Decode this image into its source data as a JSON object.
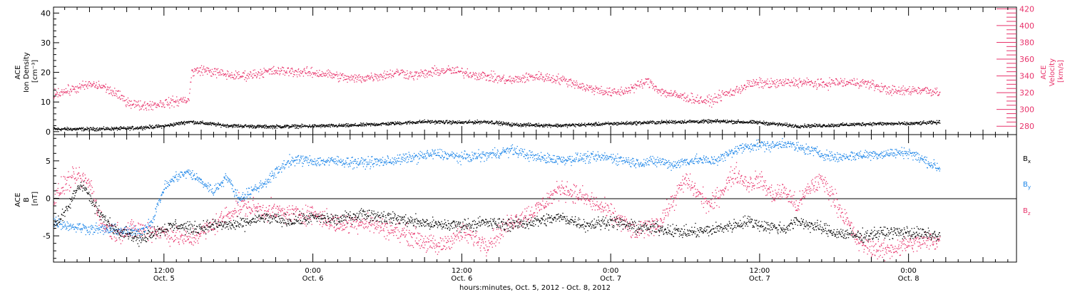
{
  "colors": {
    "density": "#000000",
    "velocity": "#e8336b",
    "bx": "#000000",
    "by": "#1a84e8",
    "bz": "#e8336b",
    "axis": "#000000"
  },
  "xaxis": {
    "ticks": [
      {
        "time": "12:00",
        "date": "Oct. 5",
        "x": 12
      },
      {
        "time": "0:00",
        "date": "Oct. 6",
        "x": 24
      },
      {
        "time": "12:00",
        "date": "Oct. 6",
        "x": 36
      },
      {
        "time": "0:00",
        "date": "Oct. 7",
        "x": 48
      },
      {
        "time": "12:00",
        "date": "Oct. 7",
        "x": 60
      },
      {
        "time": "0:00",
        "date": "Oct. 8",
        "x": 72
      }
    ],
    "title": "hours:minutes, Oct.  5, 2012 - Oct.  8, 2012"
  },
  "chart_data": [
    {
      "type": "scatter",
      "panel": "plasma",
      "xlim": [
        3.1,
        80.7
      ],
      "left_axis": {
        "label_lines": [
          "ACE",
          "Ion Density",
          "[cm⁻³]"
        ],
        "ylim": [
          -1,
          42
        ],
        "ticks": [
          "0",
          "10",
          "20",
          "30",
          "40"
        ],
        "tick_values": [
          0,
          10,
          20,
          30,
          40
        ]
      },
      "right_axis": {
        "label_lines": [
          "ACE",
          "Velocity",
          "[km/s]"
        ],
        "ylim": [
          270,
          422
        ],
        "ticks": [
          "280",
          "300",
          "320",
          "340",
          "360",
          "380",
          "400",
          "420"
        ],
        "tick_values": [
          280,
          300,
          320,
          340,
          360,
          380,
          400,
          420
        ]
      },
      "series": [
        {
          "key": "density",
          "axis": "left",
          "noise": 0.5,
          "x": [
            3.1,
            6,
            9,
            12,
            14,
            17,
            20,
            24,
            27,
            30,
            33,
            36,
            38,
            40,
            44,
            48,
            51,
            54,
            57,
            60,
            63,
            66,
            69,
            72,
            74.5
          ],
          "y": [
            1,
            1,
            1.2,
            2,
            3.5,
            2.2,
            1.8,
            2,
            2.2,
            2.8,
            3.5,
            3.2,
            3.5,
            2.5,
            2.2,
            2.8,
            3.2,
            3.5,
            3.6,
            3.2,
            2,
            2.3,
            2.8,
            2.8,
            3.3
          ]
        },
        {
          "key": "velocity",
          "axis": "right",
          "noise": 5,
          "x": [
            3.1,
            4,
            5,
            6,
            7,
            8,
            9,
            10,
            11,
            12,
            13,
            14,
            14.2,
            15,
            16,
            17,
            18,
            19,
            20,
            21,
            22,
            23,
            24,
            25,
            26,
            27,
            28,
            29,
            30,
            31,
            32,
            33,
            34,
            35,
            36,
            37,
            38,
            39,
            40,
            41,
            42,
            43,
            44,
            45,
            46,
            47,
            48,
            49,
            50,
            51,
            52,
            53,
            54,
            55,
            56,
            57,
            58,
            59,
            60,
            61,
            62,
            63,
            64,
            65,
            66,
            67,
            68,
            69,
            70,
            71,
            72,
            73,
            74,
            74.5
          ],
          "y": [
            320,
            322,
            326,
            330,
            328,
            320,
            310,
            305,
            306,
            308,
            310,
            313,
            345,
            348,
            345,
            342,
            340,
            342,
            345,
            346,
            346,
            345,
            344,
            343,
            340,
            337,
            338,
            340,
            342,
            345,
            341,
            343,
            346,
            347,
            345,
            342,
            340,
            337,
            335,
            338,
            340,
            338,
            336,
            332,
            326,
            324,
            320,
            322,
            328,
            334,
            322,
            318,
            315,
            312,
            310,
            318,
            322,
            330,
            332,
            331,
            332,
            333,
            332,
            330,
            333,
            332,
            333,
            330,
            325,
            322,
            323,
            324,
            322,
            321
          ]
        }
      ]
    },
    {
      "type": "scatter",
      "panel": "magnetic-field",
      "xlim": [
        3.1,
        80.7
      ],
      "left_axis": {
        "label_lines": [
          "ACE",
          "B",
          "[nT]"
        ],
        "ylim": [
          -8.5,
          8.5
        ],
        "ticks": [
          "-5",
          "0",
          "5"
        ],
        "tick_values": [
          -5,
          0,
          5
        ]
      },
      "zero_line": 0,
      "legend": [
        "Bx",
        "By",
        "Bz"
      ],
      "series": [
        {
          "key": "bx",
          "name": "Bx",
          "noise": 0.7,
          "x": [
            3.1,
            4,
            5,
            5.5,
            6,
            7,
            8,
            9,
            10,
            11,
            12,
            13,
            14,
            15,
            16,
            18,
            20,
            22,
            24,
            26,
            28,
            30,
            32,
            34,
            36,
            38,
            40,
            42,
            44,
            46,
            48,
            50,
            52,
            54,
            56,
            58,
            59,
            60,
            61,
            62,
            63,
            64,
            66,
            68,
            70,
            72,
            74.5
          ],
          "y": [
            -3.5,
            -2,
            1.5,
            2,
            0,
            -2.5,
            -4,
            -4.5,
            -5.5,
            -4.5,
            -4,
            -3.5,
            -4,
            -3.8,
            -3.5,
            -3.5,
            -2.5,
            -3,
            -2.5,
            -2.8,
            -2,
            -2.5,
            -3,
            -3.5,
            -3.5,
            -3.2,
            -3.5,
            -3,
            -2.5,
            -3.5,
            -3,
            -3.8,
            -4,
            -4.5,
            -4.2,
            -3.5,
            -3,
            -3.5,
            -3.8,
            -4,
            -3,
            -3.5,
            -4.5,
            -5,
            -4.5,
            -4.5,
            -5
          ]
        },
        {
          "key": "by",
          "name": "By",
          "noise": 0.6,
          "x": [
            3.1,
            4,
            5,
            6,
            8,
            10,
            11,
            12,
            13,
            14,
            16,
            17,
            18,
            20,
            21,
            22,
            23,
            24,
            26,
            28,
            30,
            32,
            34,
            36,
            38,
            40,
            42,
            44,
            46,
            48,
            50,
            52,
            53,
            54,
            55,
            56,
            57,
            58,
            59,
            60,
            61,
            62,
            63,
            64,
            66,
            68,
            70,
            72,
            74.5
          ],
          "y": [
            -3,
            -3.5,
            -3.8,
            -4,
            -4.2,
            -4.5,
            -3,
            1.5,
            3,
            3.5,
            1,
            3,
            0,
            2,
            3.5,
            5,
            5.2,
            5,
            5,
            4.8,
            5,
            5.5,
            6,
            5.5,
            5.8,
            6.5,
            5.5,
            5.2,
            5.5,
            5.5,
            4.8,
            5,
            4.5,
            5,
            5.2,
            5,
            5.5,
            6.5,
            7,
            7.2,
            7,
            7.5,
            6.8,
            6.5,
            5.5,
            5.8,
            6,
            6.2,
            4
          ]
        },
        {
          "key": "bz",
          "name": "Bz",
          "noise": 1.1,
          "x": [
            3.1,
            4,
            5,
            6,
            7,
            8,
            10,
            12,
            14,
            16,
            18,
            20,
            22,
            24,
            26,
            28,
            30,
            32,
            34,
            36,
            38,
            40,
            42,
            44,
            46,
            48,
            50,
            52,
            54,
            56,
            58,
            59,
            60,
            61,
            62,
            63,
            64,
            65,
            66,
            68,
            70,
            72,
            74.5
          ],
          "y": [
            0,
            2,
            3,
            2,
            -3.5,
            -4.5,
            -4,
            -4.5,
            -5.5,
            -3.5,
            -1,
            -1.5,
            -2,
            -2,
            -3.5,
            -3,
            -4,
            -5,
            -6.5,
            -4.5,
            -6,
            -3,
            -1.5,
            1.5,
            0,
            -2,
            -4.5,
            -3,
            2.5,
            -1,
            3.5,
            2,
            2.5,
            0.5,
            1,
            -1,
            1.5,
            2.5,
            0,
            -6,
            -7,
            -6,
            -5.5
          ]
        }
      ]
    }
  ]
}
